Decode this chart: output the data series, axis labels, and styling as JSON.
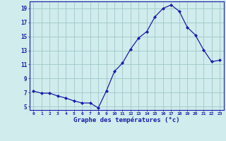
{
  "hours": [
    0,
    1,
    2,
    3,
    4,
    5,
    6,
    7,
    8,
    9,
    10,
    11,
    12,
    13,
    14,
    15,
    16,
    17,
    18,
    19,
    20,
    21,
    22,
    23
  ],
  "temps": [
    7.2,
    6.9,
    6.9,
    6.5,
    6.2,
    5.8,
    5.5,
    5.5,
    4.8,
    7.2,
    10.0,
    11.2,
    13.2,
    14.8,
    15.7,
    17.8,
    19.0,
    19.5,
    18.6,
    16.3,
    15.2,
    13.1,
    11.4,
    11.6
  ],
  "line_color": "#1a1aaa",
  "marker": "D",
  "marker_size": 2,
  "bg_color": "#d0ecec",
  "grid_color": "#a0c8c8",
  "xlabel": "Graphe des températures (°c)",
  "xlabel_color": "#1a1aaa",
  "ylabel_ticks": [
    5,
    7,
    9,
    11,
    13,
    15,
    17,
    19
  ],
  "ylim": [
    4.5,
    20.0
  ],
  "xlim": [
    -0.5,
    23.5
  ],
  "tick_color": "#1a1aaa",
  "spine_color": "#1a1aaa"
}
